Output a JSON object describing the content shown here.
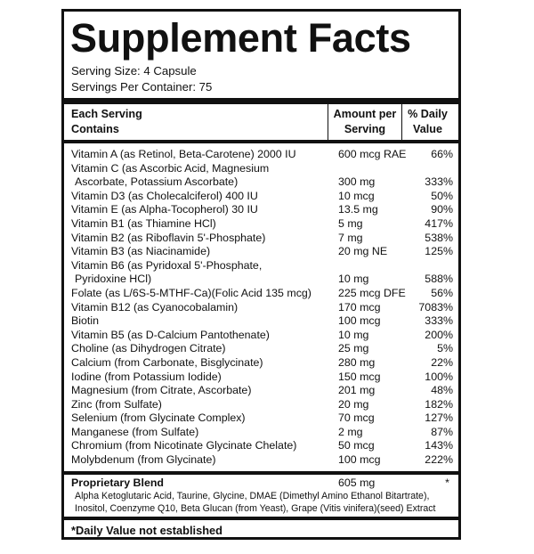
{
  "title": "Supplement Facts",
  "serving_size": "Serving Size: 4 Capsule",
  "servings_per_container": "Servings Per Container: 75",
  "headers": {
    "each_serving_line1": "Each Serving",
    "each_serving_line2": "Contains",
    "amount_line1": "Amount per",
    "amount_line2": "Serving",
    "dv_line1": "% Daily",
    "dv_line2": "Value"
  },
  "nutrients": [
    {
      "name": "Vitamin A (as Retinol, Beta-Carotene) 2000 IU",
      "name2": "",
      "amount": "600 mcg RAE",
      "dv": "66%"
    },
    {
      "name": "Vitamin C (as Ascorbic Acid, Magnesium",
      "name2": "Ascorbate, Potassium Ascorbate)",
      "amount": "300 mg",
      "dv": "333%"
    },
    {
      "name": "Vitamin D3 (as Cholecalciferol) 400 IU",
      "name2": "",
      "amount": "10 mcg",
      "dv": "50%"
    },
    {
      "name": "Vitamin E (as Alpha-Tocopherol) 30 IU",
      "name2": "",
      "amount": "13.5 mg",
      "dv": "90%"
    },
    {
      "name": "Vitamin B1 (as Thiamine HCl)",
      "name2": "",
      "amount": "5 mg",
      "dv": "417%"
    },
    {
      "name": "Vitamin B2 (as Riboflavin 5'-Phosphate)",
      "name2": "",
      "amount": "7 mg",
      "dv": "538%"
    },
    {
      "name": "Vitamin B3 (as Niacinamide)",
      "name2": "",
      "amount": "20 mg NE",
      "dv": "125%"
    },
    {
      "name": "Vitamin B6 (as Pyridoxal 5'-Phosphate,",
      "name2": "Pyridoxine HCl)",
      "amount": "10 mg",
      "dv": "588%"
    },
    {
      "name": "Folate (as L/6S-5-MTHF-Ca)(Folic Acid 135 mcg)",
      "name2": "",
      "amount": "225 mcg DFE",
      "dv": "56%"
    },
    {
      "name": "Vitamin B12 (as Cyanocobalamin)",
      "name2": "",
      "amount": "170 mcg",
      "dv": "7083%"
    },
    {
      "name": "Biotin",
      "name2": "",
      "amount": "100 mcg",
      "dv": "333%"
    },
    {
      "name": "Vitamin B5 (as D-Calcium Pantothenate)",
      "name2": "",
      "amount": "10 mg",
      "dv": "200%"
    },
    {
      "name": "Choline (as Dihydrogen Citrate)",
      "name2": "",
      "amount": "25 mg",
      "dv": "5%"
    },
    {
      "name": "Calcium (from Carbonate, Bisglycinate)",
      "name2": "",
      "amount": "280 mg",
      "dv": "22%"
    },
    {
      "name": "Iodine (from Potassium Iodide)",
      "name2": "",
      "amount": "150 mcg",
      "dv": "100%"
    },
    {
      "name": "Magnesium (from Citrate, Ascorbate)",
      "name2": "",
      "amount": "201 mg",
      "dv": "48%"
    },
    {
      "name": "Zinc (from Sulfate)",
      "name2": "",
      "amount": "20 mg",
      "dv": "182%"
    },
    {
      "name": "Selenium (from Glycinate Complex)",
      "name2": "",
      "amount": "70 mcg",
      "dv": "127%"
    },
    {
      "name": "Manganese (from Sulfate)",
      "name2": "",
      "amount": "2 mg",
      "dv": "87%"
    },
    {
      "name": "Chromium (from Nicotinate Glycinate Chelate)",
      "name2": "",
      "amount": "50 mcg",
      "dv": "143%"
    },
    {
      "name": "Molybdenum (from Glycinate)",
      "name2": "",
      "amount": "100 mcg",
      "dv": "222%"
    }
  ],
  "blend": {
    "name": "Proprietary Blend",
    "amount": "605 mg",
    "dv": "*",
    "ingredients_line1": "Alpha Ketoglutaric Acid, Taurine, Glycine, DMAE (Dimethyl Amino Ethanol Bitartrate),",
    "ingredients_line2": "Inositol, Coenzyme Q10, Beta Glucan (from Yeast), Grape (Vitis vinifera)(seed) Extract"
  },
  "footnote": "*Daily Value not established"
}
